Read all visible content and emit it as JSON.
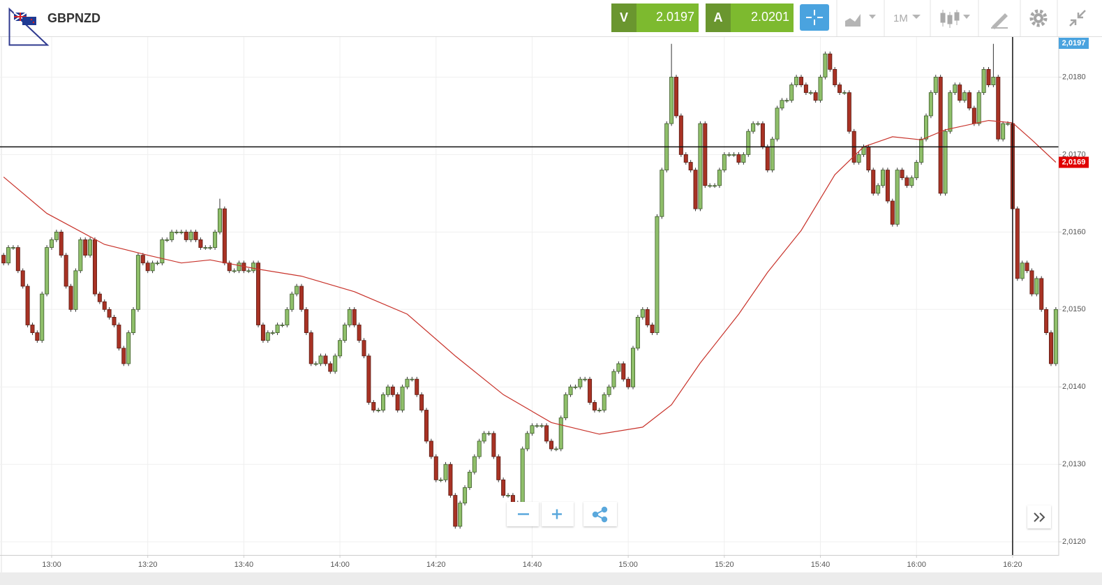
{
  "header": {
    "symbol": "GBPNZD",
    "sell_label": "V",
    "sell_price": "2.0197",
    "buy_label": "A",
    "buy_price": "2.0201",
    "timeframe": "1M"
  },
  "chart_data": {
    "type": "candlestick",
    "open": [
      2.0157,
      2.0156,
      2.0158,
      2.0158,
      2.0155,
      2.0153,
      2.0148,
      2.0147,
      2.0146,
      2.0152,
      2.0158,
      2.0159,
      2.016,
      2.0157,
      2.0153,
      2.015,
      2.0155,
      2.0159,
      2.0157,
      2.0159,
      2.0152,
      2.0151,
      2.015,
      2.0149,
      2.0148,
      2.0145,
      2.0143,
      2.0147,
      2.015,
      2.0157,
      2.0156,
      2.0155,
      2.0156,
      2.0156,
      2.0159,
      2.0159,
      2.016,
      2.016,
      2.016,
      2.0159,
      2.016,
      2.0159,
      2.0158,
      2.0158,
      2.0158,
      2.016,
      2.0163,
      2.0156,
      2.0155,
      2.0155,
      2.0156,
      2.0155,
      2.0155,
      2.0156,
      2.0148,
      2.0146,
      2.0147,
      2.0147,
      2.0148,
      2.0148,
      2.015,
      2.0152,
      2.0153,
      2.015,
      2.0147,
      2.0143,
      2.0143,
      2.0144,
      2.0143,
      2.0142,
      2.0144,
      2.0146,
      2.0148,
      2.015,
      2.0148,
      2.0146,
      2.0144,
      2.0138,
      2.0137,
      2.0137,
      2.0139,
      2.014,
      2.0139,
      2.0137,
      2.014,
      2.0141,
      2.0141,
      2.0139,
      2.0137,
      2.0133,
      2.0131,
      2.0128,
      2.0128,
      2.013,
      2.0126,
      2.0122,
      2.0125,
      2.0127,
      2.0129,
      2.0131,
      2.0133,
      2.0134,
      2.0134,
      2.0131,
      2.0128,
      2.0126,
      2.0126,
      2.0125,
      2.0125,
      2.0132,
      2.0134,
      2.0135,
      2.0135,
      2.0135,
      2.0133,
      2.0132,
      2.0132,
      2.0136,
      2.0139,
      2.014,
      2.014,
      2.0141,
      2.0141,
      2.0138,
      2.0137,
      2.0137,
      2.0139,
      2.014,
      2.0142,
      2.0143,
      2.0141,
      2.014,
      2.0145,
      2.0149,
      2.015,
      2.0148,
      2.0147,
      2.0162,
      2.0168,
      2.0174,
      2.018,
      2.0175,
      2.017,
      2.0169,
      2.0168,
      2.0163,
      2.0174,
      2.0166,
      2.0166,
      2.0166,
      2.0168,
      2.017,
      2.017,
      2.017,
      2.0169,
      2.017,
      2.0173,
      2.0174,
      2.0174,
      2.0171,
      2.0168,
      2.0172,
      2.0176,
      2.0177,
      2.0177,
      2.0179,
      2.018,
      2.0179,
      2.0178,
      2.0178,
      2.0177,
      2.018,
      2.0183,
      2.0181,
      2.0179,
      2.0178,
      2.0178,
      2.0173,
      2.0169,
      2.017,
      2.0171,
      2.0168,
      2.0165,
      2.0166,
      2.0168,
      2.0164,
      2.0161,
      2.0168,
      2.0167,
      2.0166,
      2.0167,
      2.0169,
      2.0172,
      2.0175,
      2.0178,
      2.018,
      2.0165,
      2.0173,
      2.0178,
      2.0179,
      2.0177,
      2.0178,
      2.0176,
      2.0174,
      2.0178,
      2.0181,
      2.0179,
      2.018,
      2.0172,
      2.0174,
      2.0174,
      2.0163,
      2.0154,
      2.0156,
      2.0155,
      2.0152,
      2.0154,
      2.015,
      2.0147,
      2.0143
    ],
    "high": [
      2.01573,
      2.01583,
      2.01583,
      2.01583,
      2.01553,
      2.01533,
      2.01483,
      2.01473,
      2.01523,
      2.01583,
      2.01593,
      2.01603,
      2.01603,
      2.01573,
      2.01533,
      2.01553,
      2.01593,
      2.01593,
      2.01593,
      2.01593,
      2.01523,
      2.01513,
      2.01503,
      2.01493,
      2.01483,
      2.01453,
      2.01473,
      2.01503,
      2.01573,
      2.01573,
      2.01563,
      2.01563,
      2.01563,
      2.01593,
      2.01593,
      2.01603,
      2.01603,
      2.01603,
      2.01603,
      2.01603,
      2.01603,
      2.01593,
      2.01583,
      2.01583,
      2.01603,
      2.01643,
      2.01633,
      2.01563,
      2.01553,
      2.01563,
      2.01563,
      2.01553,
      2.01563,
      2.01563,
      2.01483,
      2.01473,
      2.01473,
      2.01483,
      2.01483,
      2.01503,
      2.01523,
      2.01533,
      2.01533,
      2.01503,
      2.01473,
      2.01433,
      2.01443,
      2.01443,
      2.01433,
      2.01443,
      2.01463,
      2.01483,
      2.01503,
      2.01503,
      2.01483,
      2.01463,
      2.01443,
      2.01383,
      2.01373,
      2.01393,
      2.01403,
      2.01403,
      2.01393,
      2.01403,
      2.01413,
      2.01413,
      2.01413,
      2.01393,
      2.01373,
      2.01333,
      2.01313,
      2.01283,
      2.01303,
      2.01303,
      2.01263,
      2.01253,
      2.01273,
      2.01293,
      2.01313,
      2.01333,
      2.01343,
      2.01343,
      2.01343,
      2.01313,
      2.01283,
      2.01263,
      2.01263,
      2.01253,
      2.01323,
      2.01343,
      2.01353,
      2.01353,
      2.01353,
      2.01353,
      2.01333,
      2.01323,
      2.01363,
      2.01393,
      2.01403,
      2.01403,
      2.01413,
      2.01413,
      2.01413,
      2.01383,
      2.01373,
      2.01393,
      2.01403,
      2.01423,
      2.01433,
      2.01433,
      2.01413,
      2.01453,
      2.01493,
      2.01503,
      2.01503,
      2.01483,
      2.01623,
      2.01683,
      2.01743,
      2.01843,
      2.01803,
      2.01753,
      2.01703,
      2.01693,
      2.01683,
      2.01743,
      2.01743,
      2.01663,
      2.01663,
      2.01683,
      2.01703,
      2.01703,
      2.01703,
      2.01703,
      2.01703,
      2.01733,
      2.01743,
      2.01743,
      2.01743,
      2.01713,
      2.01723,
      2.01763,
      2.01773,
      2.01773,
      2.01793,
      2.01803,
      2.01803,
      2.01793,
      2.01783,
      2.01783,
      2.01803,
      2.01833,
      2.01833,
      2.01813,
      2.01793,
      2.01783,
      2.01783,
      2.01733,
      2.01703,
      2.01713,
      2.01713,
      2.01683,
      2.01663,
      2.01683,
      2.01683,
      2.01643,
      2.01683,
      2.01683,
      2.01673,
      2.01673,
      2.01693,
      2.01723,
      2.01753,
      2.01783,
      2.01803,
      2.01803,
      2.01733,
      2.01783,
      2.01793,
      2.01793,
      2.01783,
      2.01783,
      2.01763,
      2.01783,
      2.01813,
      2.01813,
      2.01843,
      2.01803,
      2.01743,
      2.01743,
      2.01743,
      2.01633,
      2.01563,
      2.01563,
      2.01553,
      2.01543,
      2.01543,
      2.01503,
      2.01473,
      2.01503
    ],
    "low": [
      2.01557,
      2.01557,
      2.01577,
      2.01547,
      2.01527,
      2.01477,
      2.01467,
      2.01457,
      2.01457,
      2.01517,
      2.01577,
      2.01587,
      2.01567,
      2.01527,
      2.01497,
      2.01497,
      2.01547,
      2.01567,
      2.01567,
      2.01517,
      2.01507,
      2.01497,
      2.01487,
      2.01477,
      2.01447,
      2.01427,
      2.01427,
      2.01467,
      2.01497,
      2.01557,
      2.01547,
      2.01547,
      2.01557,
      2.01557,
      2.01587,
      2.01587,
      2.01597,
      2.01597,
      2.01587,
      2.01587,
      2.01587,
      2.01577,
      2.01577,
      2.01577,
      2.01577,
      2.01597,
      2.01557,
      2.01547,
      2.01547,
      2.01547,
      2.01547,
      2.01547,
      2.01547,
      2.01477,
      2.01457,
      2.01457,
      2.01467,
      2.01467,
      2.01477,
      2.01477,
      2.01497,
      2.01517,
      2.01497,
      2.01467,
      2.01427,
      2.01427,
      2.01427,
      2.01427,
      2.01417,
      2.01417,
      2.01437,
      2.01457,
      2.01477,
      2.01477,
      2.01457,
      2.01437,
      2.01377,
      2.01367,
      2.01367,
      2.01367,
      2.01387,
      2.01387,
      2.01367,
      2.01367,
      2.01397,
      2.01407,
      2.01387,
      2.01367,
      2.01327,
      2.01307,
      2.01277,
      2.01277,
      2.01277,
      2.01257,
      2.01217,
      2.01217,
      2.01247,
      2.01267,
      2.01287,
      2.01307,
      2.01327,
      2.01337,
      2.01307,
      2.01277,
      2.01257,
      2.01257,
      2.01247,
      2.01247,
      2.01247,
      2.01317,
      2.01337,
      2.01347,
      2.01347,
      2.01327,
      2.01317,
      2.01317,
      2.01317,
      2.01357,
      2.01387,
      2.01397,
      2.01397,
      2.01407,
      2.01377,
      2.01367,
      2.01367,
      2.01367,
      2.01387,
      2.01397,
      2.01417,
      2.01407,
      2.01397,
      2.01397,
      2.01447,
      2.01487,
      2.01477,
      2.01467,
      2.01467,
      2.01617,
      2.01677,
      2.01737,
      2.01747,
      2.01697,
      2.01687,
      2.01677,
      2.01627,
      2.01627,
      2.01657,
      2.01657,
      2.01657,
      2.01657,
      2.01677,
      2.01697,
      2.01697,
      2.01687,
      2.01687,
      2.01697,
      2.01727,
      2.01737,
      2.01707,
      2.01677,
      2.01677,
      2.01717,
      2.01757,
      2.01767,
      2.01767,
      2.01787,
      2.01787,
      2.01777,
      2.01777,
      2.01767,
      2.01767,
      2.01797,
      2.01807,
      2.01787,
      2.01777,
      2.01777,
      2.01727,
      2.01687,
      2.01687,
      2.01697,
      2.01677,
      2.01647,
      2.01647,
      2.01657,
      2.01637,
      2.01607,
      2.01607,
      2.01667,
      2.01657,
      2.01657,
      2.01667,
      2.01687,
      2.01717,
      2.01747,
      2.01777,
      2.01647,
      2.01647,
      2.01727,
      2.01777,
      2.01767,
      2.01767,
      2.01757,
      2.01737,
      2.01737,
      2.01777,
      2.01787,
      2.01787,
      2.01717,
      2.01717,
      2.01737,
      2.01627,
      2.01537,
      2.01537,
      2.01547,
      2.01517,
      2.01517,
      2.01497,
      2.01467,
      2.01427,
      2.01427
    ],
    "close": [
      2.0156,
      2.0158,
      2.0158,
      2.0155,
      2.0153,
      2.0148,
      2.0147,
      2.0146,
      2.0152,
      2.0158,
      2.0159,
      2.016,
      2.0157,
      2.0153,
      2.015,
      2.0155,
      2.0159,
      2.0157,
      2.0159,
      2.0152,
      2.0151,
      2.015,
      2.0149,
      2.0148,
      2.0145,
      2.0143,
      2.0147,
      2.015,
      2.0157,
      2.0156,
      2.0155,
      2.0156,
      2.0156,
      2.0159,
      2.0159,
      2.016,
      2.016,
      2.016,
      2.0159,
      2.016,
      2.0159,
      2.0158,
      2.0158,
      2.0158,
      2.016,
      2.0163,
      2.0156,
      2.0155,
      2.0155,
      2.0156,
      2.0155,
      2.0155,
      2.0156,
      2.0148,
      2.0146,
      2.0147,
      2.0147,
      2.0148,
      2.0148,
      2.015,
      2.0152,
      2.0153,
      2.015,
      2.0147,
      2.0143,
      2.0143,
      2.0144,
      2.0143,
      2.0142,
      2.0144,
      2.0146,
      2.0148,
      2.015,
      2.0148,
      2.0146,
      2.0144,
      2.0138,
      2.0137,
      2.0137,
      2.0139,
      2.014,
      2.0139,
      2.0137,
      2.014,
      2.0141,
      2.0141,
      2.0139,
      2.0137,
      2.0133,
      2.0131,
      2.0128,
      2.0128,
      2.013,
      2.0126,
      2.0122,
      2.0125,
      2.0127,
      2.0129,
      2.0131,
      2.0133,
      2.0134,
      2.0134,
      2.0131,
      2.0128,
      2.0126,
      2.0126,
      2.0125,
      2.0125,
      2.0132,
      2.0134,
      2.0135,
      2.0135,
      2.0135,
      2.0133,
      2.0132,
      2.0132,
      2.0136,
      2.0139,
      2.014,
      2.014,
      2.0141,
      2.0141,
      2.0138,
      2.0137,
      2.0137,
      2.0139,
      2.014,
      2.0142,
      2.0143,
      2.0141,
      2.014,
      2.0145,
      2.0149,
      2.015,
      2.0148,
      2.0147,
      2.0162,
      2.0168,
      2.0174,
      2.018,
      2.0175,
      2.017,
      2.0169,
      2.0168,
      2.0163,
      2.0174,
      2.0166,
      2.0166,
      2.0166,
      2.0168,
      2.017,
      2.017,
      2.017,
      2.0169,
      2.017,
      2.0173,
      2.0174,
      2.0174,
      2.0171,
      2.0168,
      2.0172,
      2.0176,
      2.0177,
      2.0177,
      2.0179,
      2.018,
      2.0179,
      2.0178,
      2.0178,
      2.0177,
      2.018,
      2.0183,
      2.0181,
      2.0179,
      2.0178,
      2.0178,
      2.0173,
      2.0169,
      2.017,
      2.0171,
      2.0168,
      2.0165,
      2.0166,
      2.0168,
      2.0164,
      2.0161,
      2.0168,
      2.0167,
      2.0166,
      2.0167,
      2.0169,
      2.0172,
      2.0175,
      2.0178,
      2.018,
      2.0165,
      2.0173,
      2.0178,
      2.0179,
      2.0177,
      2.0178,
      2.0176,
      2.0174,
      2.0178,
      2.0181,
      2.0179,
      2.018,
      2.0172,
      2.0174,
      2.0174,
      2.0163,
      2.0154,
      2.0156,
      2.0155,
      2.0152,
      2.0154,
      2.015,
      2.0147,
      2.0143,
      2.015
    ],
    "up_color": "#8fbf6a",
    "down_color": "#a83224",
    "ma": {
      "color": "#c8322a",
      "x": [
        0,
        9,
        21,
        30,
        37,
        43,
        53,
        62,
        73,
        84,
        94,
        104,
        114,
        124,
        133,
        139,
        145,
        153,
        159,
        166,
        173,
        179,
        185,
        191,
        196,
        205,
        210,
        214,
        219
      ],
      "values": [
        2.01671,
        2.01624,
        2.01584,
        2.0157,
        2.0156,
        2.01564,
        2.01552,
        2.01543,
        2.01523,
        2.01494,
        2.0144,
        2.0139,
        2.01354,
        2.01339,
        2.01348,
        2.01377,
        2.01431,
        2.01494,
        2.01548,
        2.01602,
        2.01674,
        2.0171,
        2.01723,
        2.01719,
        2.01732,
        2.01744,
        2.01741,
        2.01719,
        2.0169
      ]
    },
    "crosshair": {
      "x": 210,
      "y": 2.0171
    },
    "price_badges": [
      {
        "value": 2.0197,
        "label": "2,0197",
        "color": "#4aa3df"
      },
      {
        "value": 2.0169,
        "label": "2,0169",
        "color": "#e00000"
      }
    ],
    "xlim": [
      -0.75,
      219.6
    ],
    "xticks": [
      {
        "value": 10,
        "label": "13:00"
      },
      {
        "value": 30,
        "label": "13:20"
      },
      {
        "value": 50,
        "label": "13:40"
      },
      {
        "value": 70,
        "label": "14:00"
      },
      {
        "value": 90,
        "label": "14:20"
      },
      {
        "value": 110,
        "label": "14:40"
      },
      {
        "value": 130,
        "label": "15:00"
      },
      {
        "value": 150,
        "label": "15:20"
      },
      {
        "value": 170,
        "label": "15:40"
      },
      {
        "value": 190,
        "label": "16:00"
      },
      {
        "value": 210,
        "label": "16:20"
      }
    ],
    "ylim": [
      2.01183,
      2.0185
    ],
    "yticks": [
      {
        "value": 2.012,
        "label": "2,0120"
      },
      {
        "value": 2.013,
        "label": "2,0130"
      },
      {
        "value": 2.014,
        "label": "2,0140"
      },
      {
        "value": 2.015,
        "label": "2,0150"
      },
      {
        "value": 2.016,
        "label": "2,0160"
      },
      {
        "value": 2.017,
        "label": "2,0170"
      },
      {
        "value": 2.018,
        "label": "2,0180"
      }
    ],
    "grid": true
  }
}
